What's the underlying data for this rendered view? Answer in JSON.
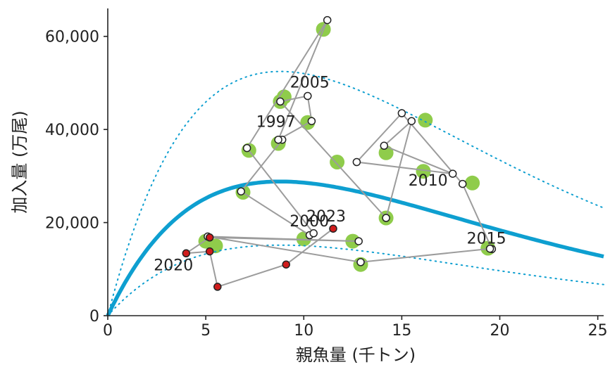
{
  "chart_data": {
    "type": "scatter",
    "xlabel": "親魚量 (千トン)",
    "ylabel": "加入量 (万尾)",
    "xlim": [
      0,
      25.3
    ],
    "ylim": [
      0,
      66000
    ],
    "x_ticks": [
      0,
      5,
      10,
      15,
      20,
      25
    ],
    "y_ticks": [
      0,
      20000,
      40000,
      60000
    ],
    "x_tick_labels": [
      "0",
      "5",
      "10",
      "15",
      "20",
      "25"
    ],
    "y_tick_labels": [
      "0",
      "20,000",
      "40,000",
      "60,000"
    ],
    "grid": false,
    "colors": {
      "curve": "#0e9fd0",
      "green_points": "#8fcc4b",
      "trajectory_line": "#9c9c9c",
      "observed_points": "#ffffff",
      "recent_points": "#d01c1c"
    },
    "curve_model": {
      "type": "ricker",
      "fit": {
        "a": 8.9,
        "b": 0.1136
      },
      "upper": {
        "a": 16.2,
        "b": 0.1136
      },
      "lower": {
        "a": 4.68,
        "b": 0.1136
      }
    },
    "green_points": [
      [
        11.0,
        61500
      ],
      [
        9.0,
        47000
      ],
      [
        8.8,
        46000
      ],
      [
        10.2,
        41500
      ],
      [
        7.2,
        35500
      ],
      [
        8.7,
        37000
      ],
      [
        11.7,
        33000
      ],
      [
        14.2,
        35000
      ],
      [
        16.2,
        42000
      ],
      [
        16.1,
        31000
      ],
      [
        18.6,
        28500
      ],
      [
        19.4,
        14500
      ],
      [
        6.9,
        26500
      ],
      [
        14.2,
        21000
      ],
      [
        10.0,
        16500
      ],
      [
        12.5,
        16000
      ],
      [
        12.9,
        11000
      ],
      [
        5.0,
        16000
      ],
      [
        5.5,
        15000
      ]
    ],
    "trajectory": [
      {
        "year": "1997",
        "x": 8.9,
        "y": 37800,
        "marker": "open"
      },
      {
        "year": "",
        "x": 6.8,
        "y": 26700,
        "marker": "open"
      },
      {
        "year": "",
        "x": 10.3,
        "y": 17300,
        "marker": "open"
      },
      {
        "year": "2000",
        "x": 10.5,
        "y": 17700,
        "marker": "open"
      },
      {
        "year": "",
        "x": 7.1,
        "y": 36000,
        "marker": "open"
      },
      {
        "year": "",
        "x": 11.2,
        "y": 63500,
        "marker": "open"
      },
      {
        "year": "",
        "x": 8.7,
        "y": 37800,
        "marker": "open"
      },
      {
        "year": "",
        "x": 10.4,
        "y": 41800,
        "marker": "open"
      },
      {
        "year": "2005",
        "x": 10.2,
        "y": 47200,
        "marker": "open"
      },
      {
        "year": "",
        "x": 8.8,
        "y": 46000,
        "marker": "open"
      },
      {
        "year": "",
        "x": 14.2,
        "y": 21000,
        "marker": "open"
      },
      {
        "year": "",
        "x": 15.5,
        "y": 41800,
        "marker": "open"
      },
      {
        "year": "",
        "x": 14.1,
        "y": 36500,
        "marker": "open"
      },
      {
        "year": "2010",
        "x": 17.6,
        "y": 30500,
        "marker": "open"
      },
      {
        "year": "",
        "x": 12.7,
        "y": 33000,
        "marker": "open"
      },
      {
        "year": "",
        "x": 15.0,
        "y": 43500,
        "marker": "open"
      },
      {
        "year": "",
        "x": 18.1,
        "y": 28300,
        "marker": "open"
      },
      {
        "year": "",
        "x": 19.6,
        "y": 14300,
        "marker": "open"
      },
      {
        "year": "2015",
        "x": 19.5,
        "y": 14400,
        "marker": "open"
      },
      {
        "year": "",
        "x": 12.9,
        "y": 11500,
        "marker": "open"
      },
      {
        "year": "",
        "x": 5.1,
        "y": 17000,
        "marker": "open"
      },
      {
        "year": "",
        "x": 12.8,
        "y": 16000,
        "marker": "open"
      },
      {
        "year": "",
        "x": 5.2,
        "y": 16800,
        "marker": "red"
      },
      {
        "year": "2020",
        "x": 4.0,
        "y": 13400,
        "marker": "red"
      },
      {
        "year": "",
        "x": 5.2,
        "y": 13800,
        "marker": "red"
      },
      {
        "year": "",
        "x": 5.6,
        "y": 6200,
        "marker": "red"
      },
      {
        "year": "",
        "x": 9.1,
        "y": 11000,
        "marker": "red"
      },
      {
        "year": "2023",
        "x": 11.5,
        "y": 18700,
        "marker": "red"
      }
    ],
    "year_labels": [
      {
        "text": "1997",
        "x": 8.9,
        "y": 37800
      },
      {
        "text": "2000",
        "x": 10.5,
        "y": 17700
      },
      {
        "text": "2005",
        "x": 10.2,
        "y": 47200
      },
      {
        "text": "2010",
        "x": 17.6,
        "y": 30500
      },
      {
        "text": "2015",
        "x": 19.5,
        "y": 14400
      },
      {
        "text": "2020",
        "x": 4.0,
        "y": 13400
      },
      {
        "text": "2023",
        "x": 11.5,
        "y": 18700
      }
    ]
  }
}
